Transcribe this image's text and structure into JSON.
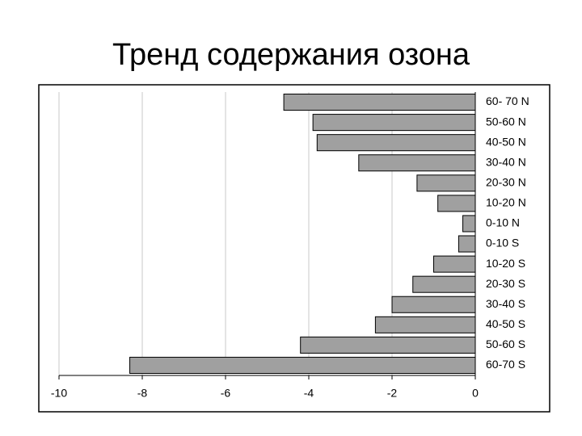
{
  "chart_data": {
    "type": "bar",
    "orientation": "horizontal",
    "title": "Тренд содержания озона",
    "categories": [
      "60- 70 N",
      "50-60 N",
      "40-50 N",
      "30-40 N",
      "20-30 N",
      "10-20 N",
      "0-10 N",
      "0-10 S",
      "10-20 S",
      "20-30 S",
      "30-40 S",
      "40-50 S",
      "50-60 S",
      "60-70 S"
    ],
    "values": [
      -4.6,
      -3.9,
      -3.8,
      -2.8,
      -1.4,
      -0.9,
      -0.3,
      -0.4,
      -1.0,
      -1.5,
      -2.0,
      -2.4,
      -4.2,
      -8.3
    ],
    "color": "#a0a0a0",
    "xlim": [
      -10,
      0
    ],
    "xticks": [
      -10,
      -8,
      -6,
      -4,
      -2,
      0
    ],
    "grid": true
  }
}
